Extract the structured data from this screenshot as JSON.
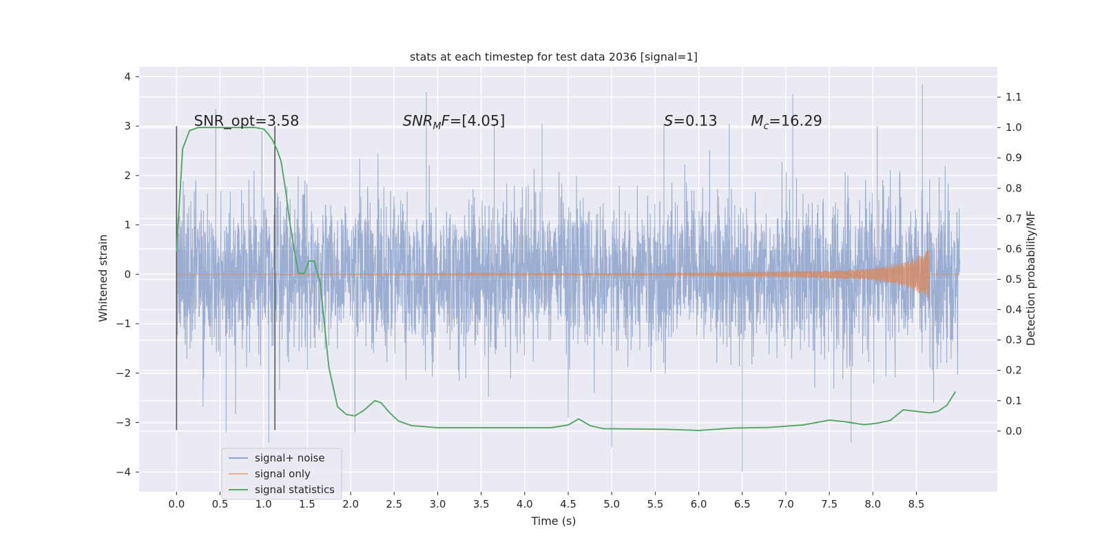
{
  "chart_data": {
    "type": "line",
    "title": "stats at each timestep for test data 2036 [signal=1]",
    "xlabel": "Time (s)",
    "ylabel_left": "Whitened strain",
    "ylabel_right": "Detection probability/MF",
    "xlim": [
      -0.43,
      9.43
    ],
    "ylim_left": [
      -4.4,
      4.2
    ],
    "ylim_right": [
      -0.2,
      1.2
    ],
    "x_ticks": [
      0.0,
      0.5,
      1.0,
      1.5,
      2.0,
      2.5,
      3.0,
      3.5,
      4.0,
      4.5,
      5.0,
      5.5,
      6.0,
      6.5,
      7.0,
      7.5,
      8.0,
      8.5
    ],
    "x_tick_labels": [
      "0.0",
      "0.5",
      "1.0",
      "1.5",
      "2.0",
      "2.5",
      "3.0",
      "3.5",
      "4.0",
      "4.5",
      "5.0",
      "5.5",
      "6.0",
      "6.5",
      "7.0",
      "7.5",
      "8.0",
      "8.5"
    ],
    "y_left_ticks": [
      4,
      3,
      2,
      1,
      0,
      -1,
      -2,
      -3,
      -4
    ],
    "y_left_tick_labels": [
      "4",
      "3",
      "2",
      "1",
      "0",
      "−1",
      "−2",
      "−3",
      "−4"
    ],
    "y_right_ticks": [
      1.1,
      1.0,
      0.9,
      0.8,
      0.7,
      0.6,
      0.5,
      0.4,
      0.3,
      0.2,
      0.1,
      0.0
    ],
    "y_right_tick_labels": [
      "1.1",
      "1.0",
      "0.9",
      "0.8",
      "0.7",
      "0.6",
      "0.5",
      "0.4",
      "0.3",
      "0.2",
      "0.1",
      "0.0"
    ],
    "grid": true,
    "legend_position": "lower-left",
    "annotations": [
      {
        "text": "SNR_opt=3.58",
        "x": 0.2,
        "y": 3.05
      },
      {
        "text": "SNR_MF=[4.05]",
        "x": 2.6,
        "y": 3.05
      },
      {
        "text": "S=0.13",
        "x": 5.6,
        "y": 3.05
      },
      {
        "text": "M_c=16.29",
        "x": 6.6,
        "y": 3.05
      }
    ],
    "vertical_lines": [
      0.0,
      1.13
    ],
    "series": [
      {
        "name": "signal+ noise",
        "color": "#4c72b0",
        "axis": "left",
        "description": "whitened noise trace spanning 0.0 to 9.0 s, mostly within ±2.5",
        "x_range": [
          0.0,
          9.0
        ],
        "spikes": [
          [
            0.0,
            1.35
          ],
          [
            0.45,
            3.35
          ],
          [
            0.57,
            -3.2
          ],
          [
            0.98,
            2.9
          ],
          [
            1.06,
            -3.4
          ],
          [
            2.05,
            -3.2
          ],
          [
            2.87,
            3.68
          ],
          [
            3.65,
            3.05
          ],
          [
            4.2,
            3.05
          ],
          [
            5.0,
            -3.5
          ],
          [
            5.6,
            3.05
          ],
          [
            6.35,
            3.05
          ],
          [
            6.5,
            -4.0
          ],
          [
            7.08,
            3.65
          ],
          [
            7.75,
            -3.4
          ],
          [
            8.57,
            3.85
          ],
          [
            8.05,
            3.0
          ]
        ]
      },
      {
        "name": "signal only",
        "color": "#dd8452",
        "axis": "left",
        "x": [
          0.0,
          5.0,
          6.0,
          6.5,
          7.0,
          7.5,
          7.8,
          8.0,
          8.2,
          8.4,
          8.5,
          8.6,
          8.65
        ],
        "envelope": [
          0.0,
          0.02,
          0.04,
          0.05,
          0.06,
          0.08,
          0.1,
          0.13,
          0.18,
          0.27,
          0.35,
          0.48,
          0.58
        ]
      },
      {
        "name": "signal statistics",
        "color": "#55a868",
        "axis": "right",
        "x": [
          0.0,
          0.07,
          0.15,
          0.25,
          0.4,
          0.55,
          0.7,
          0.8,
          0.9,
          1.0,
          1.05,
          1.1,
          1.15,
          1.2,
          1.25,
          1.3,
          1.35,
          1.4,
          1.47,
          1.52,
          1.58,
          1.65,
          1.75,
          1.85,
          1.95,
          2.05,
          2.15,
          2.28,
          2.35,
          2.45,
          2.55,
          2.7,
          3.0,
          3.5,
          4.0,
          4.3,
          4.5,
          4.62,
          4.75,
          4.9,
          5.2,
          5.6,
          6.0,
          6.4,
          6.8,
          7.2,
          7.5,
          7.7,
          7.9,
          8.05,
          8.2,
          8.35,
          8.5,
          8.65,
          8.75,
          8.85,
          8.95
        ],
        "y": [
          0.59,
          0.93,
          0.99,
          1.0,
          1.0,
          1.0,
          1.0,
          1.0,
          1.0,
          0.995,
          0.98,
          0.96,
          0.93,
          0.89,
          0.8,
          0.69,
          0.6,
          0.52,
          0.52,
          0.56,
          0.56,
          0.49,
          0.21,
          0.08,
          0.055,
          0.05,
          0.068,
          0.1,
          0.093,
          0.06,
          0.033,
          0.018,
          0.011,
          0.011,
          0.011,
          0.011,
          0.02,
          0.04,
          0.018,
          0.008,
          0.007,
          0.006,
          0.002,
          0.01,
          0.012,
          0.02,
          0.036,
          0.03,
          0.021,
          0.026,
          0.035,
          0.07,
          0.065,
          0.06,
          0.065,
          0.085,
          0.13
        ]
      }
    ]
  }
}
